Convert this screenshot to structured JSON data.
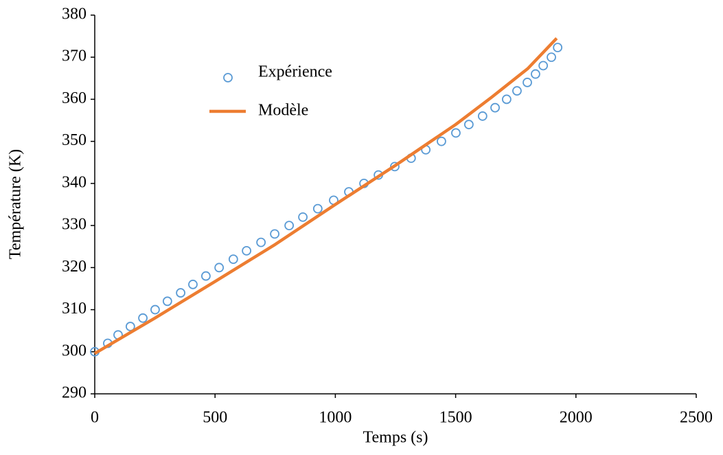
{
  "chart_data": {
    "type": "scatter",
    "x_label": "Temps (s)",
    "y_label": "Température (K)",
    "xlim": [
      0,
      2500
    ],
    "xticks": [
      0,
      500,
      1000,
      1500,
      2000,
      2500
    ],
    "ylim": [
      290,
      380
    ],
    "yticks": [
      290,
      300,
      310,
      320,
      330,
      340,
      350,
      360,
      370,
      380
    ],
    "grid": false,
    "legend": "upper left",
    "series": [
      {
        "name": "Expérience",
        "color": "#5b9bd5",
        "style": "marker",
        "x": [
          0,
          54,
          97,
          148,
          200,
          251,
          302,
          357,
          408,
          462,
          517,
          576,
          631,
          691,
          748,
          808,
          865,
          927,
          993,
          1056,
          1119,
          1179,
          1247,
          1315,
          1376,
          1441,
          1501,
          1555,
          1612,
          1664,
          1712,
          1755,
          1798,
          1832,
          1864,
          1898,
          1924
        ],
        "values": [
          300,
          302,
          304,
          306,
          308,
          310,
          312,
          314,
          316,
          318,
          320,
          322,
          324,
          326,
          328,
          330,
          332,
          334,
          336,
          338,
          340,
          342,
          344,
          346,
          348,
          350,
          352,
          354,
          356,
          358,
          360,
          362,
          364,
          366,
          368,
          370,
          372.3
        ]
      },
      {
        "name": "Modèle",
        "color": "#ed7d31",
        "style": "line",
        "x": [
          0,
          250,
          500,
          750,
          1000,
          1250,
          1500,
          1650,
          1800,
          1920
        ],
        "values": [
          299.6,
          308,
          316.7,
          325.5,
          335,
          344.3,
          354,
          360.5,
          367.3,
          374.5
        ]
      }
    ]
  }
}
